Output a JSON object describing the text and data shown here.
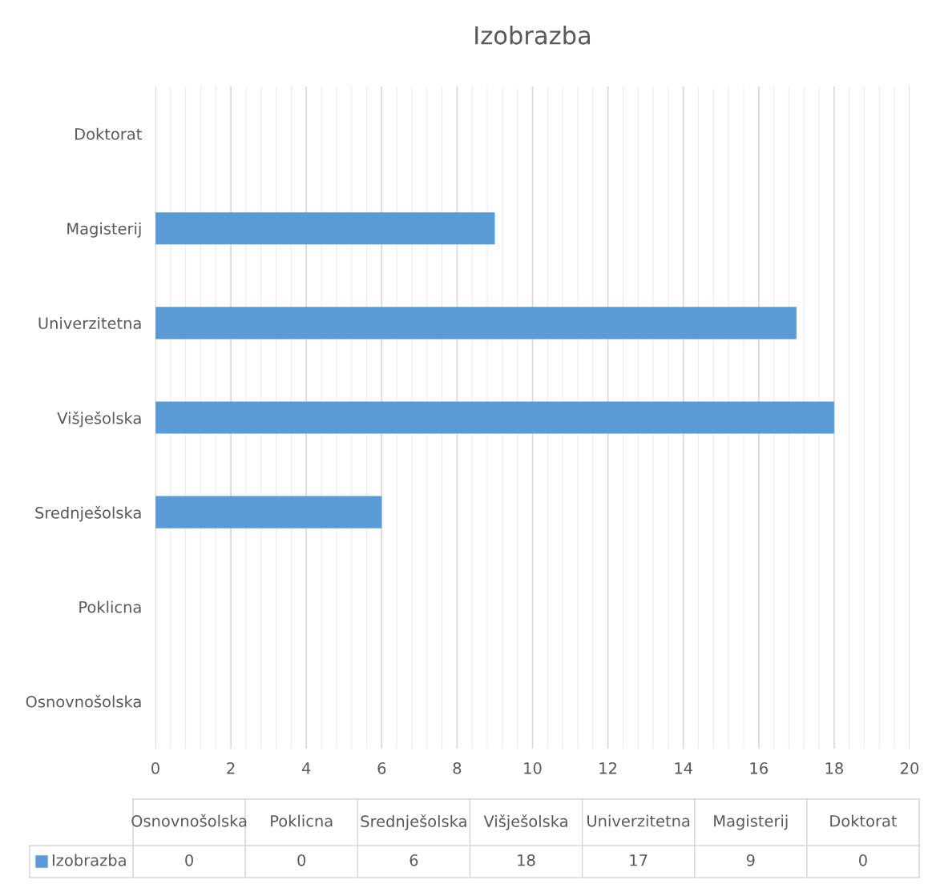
{
  "chart_data": [
    {
      "type": "bar",
      "orientation": "horizontal",
      "title": "Izobrazba",
      "categories": [
        "Doktorat",
        "Magisterij",
        "Univerzitetna",
        "Višješolska",
        "Srednješolska",
        "Poklicna",
        "Osnovnošolska"
      ],
      "series": [
        {
          "color": "#5b9bd5",
          "values": [
            0,
            9,
            17,
            18,
            6,
            0,
            0
          ]
        }
      ],
      "xlim": [
        0,
        20
      ],
      "xticks": [
        0,
        2,
        4,
        6,
        8,
        10,
        12,
        14,
        16,
        18,
        20
      ],
      "grid": "x"
    },
    {
      "type": "other",
      "categories": [
        "Osnovnošolska",
        "Poklicna",
        "Srednješolska",
        "Višješolska",
        "Univerzitetna",
        "Magisterij",
        "Doktorat"
      ],
      "series": [
        {
          "name": "Izobrazba",
          "color": "#5b9bd5",
          "values": [
            0,
            0,
            6,
            18,
            17,
            9,
            0
          ]
        }
      ],
      "legend": "left",
      "data_labels": true
    }
  ]
}
